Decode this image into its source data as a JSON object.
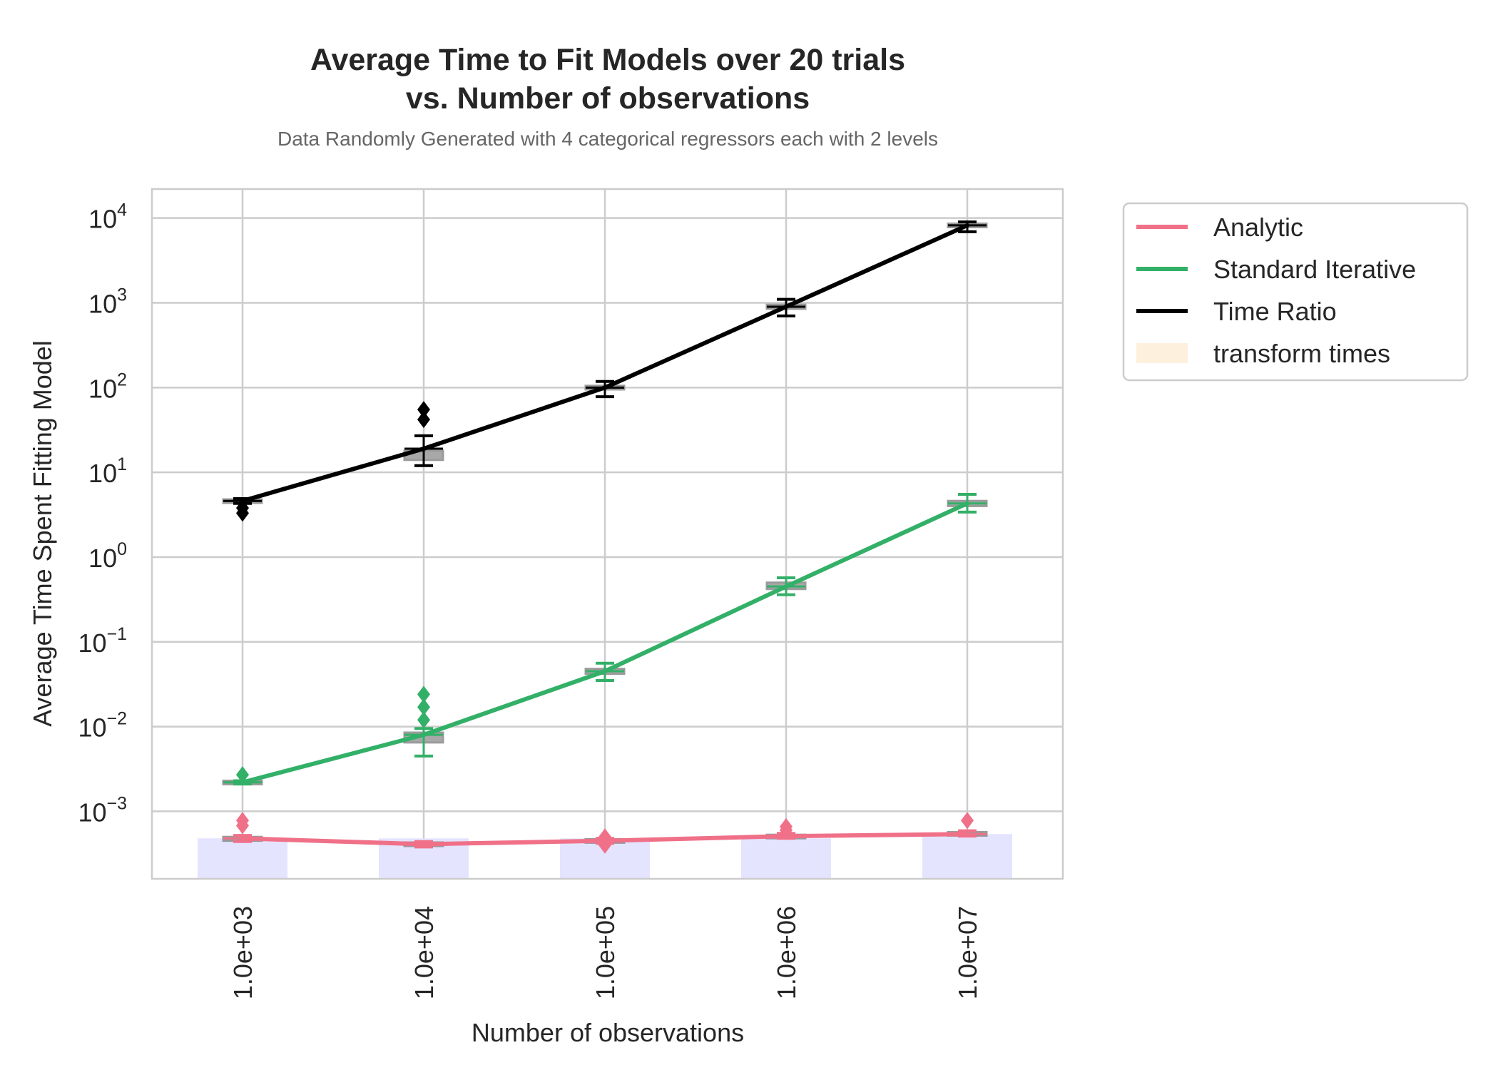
{
  "chart_data": {
    "type": "line",
    "title_line1": "Average Time to Fit Models over 20 trials",
    "title_line2": "vs. Number of observations",
    "subtitle": "Data Randomly Generated with 4 categorical regressors each with 2 levels",
    "xlabel": "Number of observations",
    "ylabel": "Average Time Spent Fitting Model",
    "categories": [
      "1.0e+03",
      "1.0e+04",
      "1.0e+05",
      "1.0e+06",
      "1.0e+07"
    ],
    "y_scale": "log",
    "ylim": [
      0.00016,
      22000
    ],
    "y_ticks": [
      0.001,
      0.01,
      0.1,
      1,
      10,
      100,
      1000,
      10000
    ],
    "y_tick_labels": [
      {
        "base": "10",
        "exp": "−3"
      },
      {
        "base": "10",
        "exp": "−2"
      },
      {
        "base": "10",
        "exp": "−1"
      },
      {
        "base": "10",
        "exp": "0"
      },
      {
        "base": "10",
        "exp": "1"
      },
      {
        "base": "10",
        "exp": "2"
      },
      {
        "base": "10",
        "exp": "3"
      },
      {
        "base": "10",
        "exp": "4"
      }
    ],
    "grid": true,
    "legend_position": "outside-upper-right",
    "series": [
      {
        "name": "Analytic",
        "color": "#f07088",
        "values": [
          0.00048,
          0.00041,
          0.00045,
          0.00051,
          0.00054
        ],
        "box_lo": [
          0.00045,
          0.00039,
          0.00043,
          0.00049,
          0.00052
        ],
        "box_hi": [
          0.0005,
          0.00043,
          0.00047,
          0.00053,
          0.00057
        ],
        "whisker_lo": [
          0.00044,
          0.00038,
          0.00042,
          0.00048,
          0.00051
        ],
        "whisker_hi": [
          0.00052,
          0.00044,
          0.00048,
          0.00055,
          0.00059
        ],
        "outliers": [
          [
            0.00068,
            0.00078
          ],
          [],
          [
            0.0004,
            0.00043,
            0.0005
          ],
          [
            0.0006,
            0.00066
          ],
          [
            0.00078
          ]
        ]
      },
      {
        "name": "Standard Iterative",
        "color": "#33b068",
        "values": [
          0.0022,
          0.008,
          0.045,
          0.45,
          4.3
        ],
        "box_lo": [
          0.0021,
          0.0065,
          0.042,
          0.42,
          4.0
        ],
        "box_hi": [
          0.0023,
          0.0085,
          0.048,
          0.5,
          4.6
        ],
        "whisker_lo": [
          0.0021,
          0.0045,
          0.035,
          0.36,
          3.4
        ],
        "whisker_hi": [
          0.0023,
          0.0095,
          0.056,
          0.57,
          5.5
        ],
        "outliers": [
          [
            0.0027
          ],
          [
            0.012,
            0.017,
            0.024
          ],
          [],
          [],
          []
        ]
      },
      {
        "name": "Time Ratio",
        "color": "#000000",
        "values": [
          4.6,
          19,
          100,
          900,
          8200
        ],
        "box_lo": [
          4.4,
          14,
          95,
          850,
          7800
        ],
        "box_hi": [
          4.8,
          18,
          105,
          950,
          8600
        ],
        "whisker_lo": [
          4.3,
          12,
          78,
          700,
          6900
        ],
        "whisker_hi": [
          4.9,
          27,
          118,
          1100,
          9000
        ],
        "outliers": [
          [
            3.3,
            3.8
          ],
          [
            42,
            55
          ],
          [],
          [],
          []
        ]
      }
    ],
    "transform_times": {
      "name": "transform times",
      "legend_color": "#fdf1de",
      "bar_color": "#e4e4ff",
      "values": [
        0.00048,
        0.00048,
        0.00048,
        0.00048,
        0.00054
      ]
    }
  }
}
